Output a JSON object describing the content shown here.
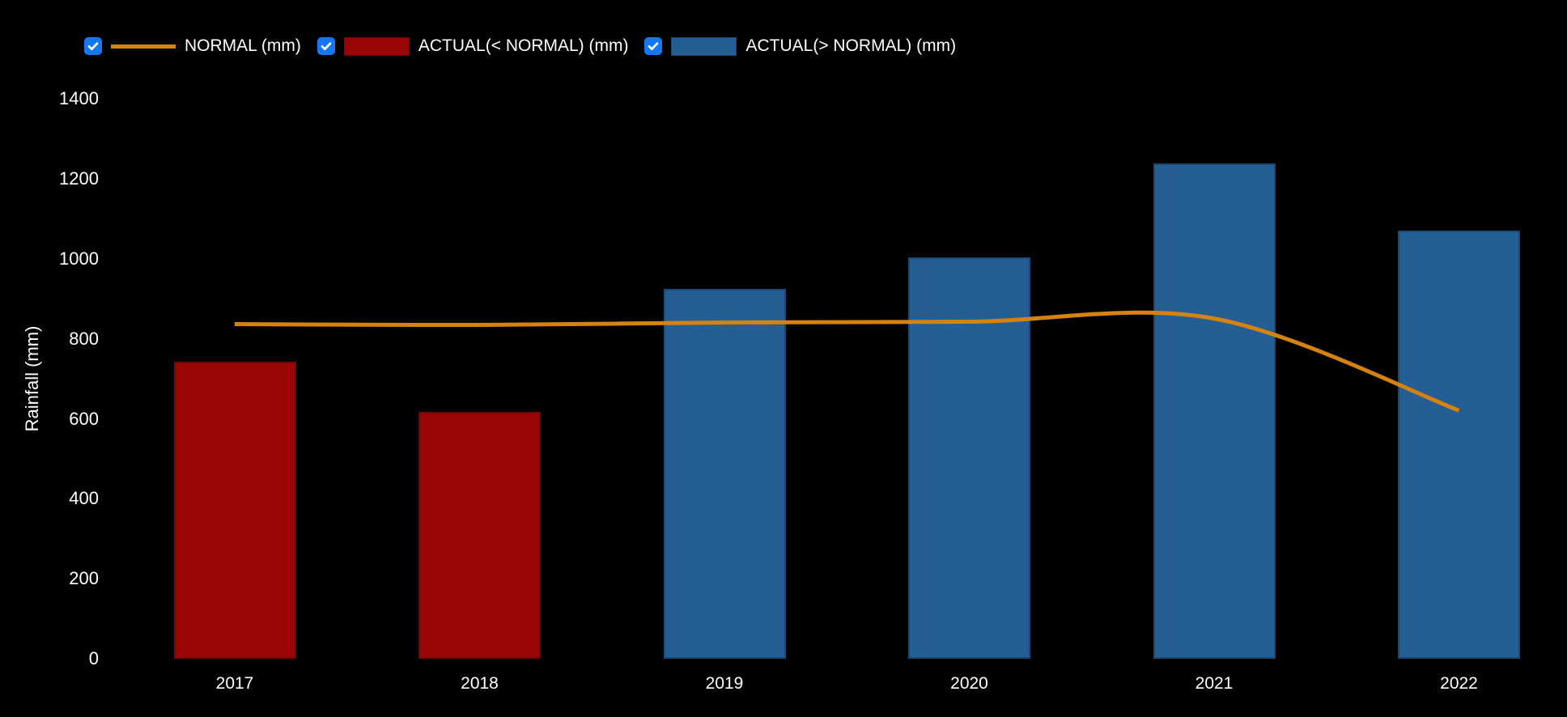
{
  "legend": {
    "checkbox_color": "#1577F2",
    "items": [
      {
        "label": "NORMAL (mm)",
        "checked": true,
        "swatch": "line",
        "color": "#D5820E"
      },
      {
        "label": "ACTUAL(< NORMAL) (mm)",
        "checked": true,
        "swatch": "box",
        "color": "#9A0606"
      },
      {
        "label": "ACTUAL(> NORMAL) (mm)",
        "checked": true,
        "swatch": "box",
        "color": "#255E94"
      }
    ]
  },
  "axis": {
    "y_label": "Rainfall (mm)"
  },
  "chart_data": {
    "type": "bar",
    "subtype": "bars-with-spline-overlay",
    "categories": [
      "2017",
      "2018",
      "2019",
      "2020",
      "2021",
      "2022"
    ],
    "series": [
      {
        "name": "NORMAL (mm)",
        "type": "spline",
        "color": "#D5820E",
        "values": [
          837,
          835,
          841,
          843,
          851,
          621
        ]
      },
      {
        "name": "ACTUAL(< NORMAL) (mm)",
        "type": "bar",
        "color": "#9A0606",
        "values": [
          742,
          617,
          null,
          null,
          null,
          null
        ]
      },
      {
        "name": "ACTUAL(> NORMAL) (mm)",
        "type": "bar",
        "color": "#255E94",
        "values": [
          null,
          null,
          925,
          1005,
          1239,
          1071
        ]
      }
    ],
    "title": "",
    "xlabel": "",
    "ylabel": "Rainfall (mm)",
    "ylim": [
      0,
      1400
    ],
    "yticks": [
      0,
      200,
      400,
      600,
      800,
      1000,
      1200,
      1400
    ],
    "grid": false,
    "axis_lines": false,
    "background_color": "#000000",
    "text_color": "#FFFFFF",
    "legend_position": "top-left"
  }
}
